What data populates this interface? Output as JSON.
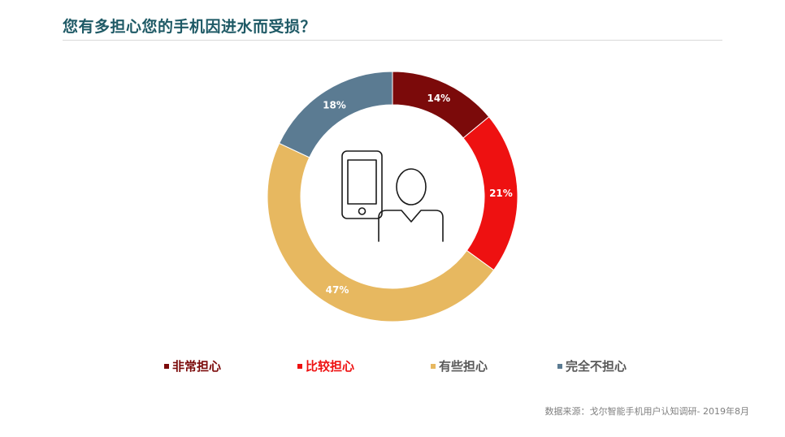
{
  "title": "您有多担心您的手机因进水而受损？",
  "source": "数据来源：戈尔智能手机用户认知调研- 2019年8月",
  "chart_data": {
    "type": "pie",
    "variant": "donut",
    "start": "12 o'clock, clockwise",
    "categories": [
      "非常担心",
      "比较担心",
      "有些担心",
      "完全不担心"
    ],
    "values": [
      14,
      21,
      47,
      18
    ],
    "data_labels": [
      "14%",
      "21%",
      "47%",
      "18%"
    ],
    "colors": [
      "#7b0a0a",
      "#ee1111",
      "#e7b860",
      "#5b7b92"
    ],
    "legend_text_colors": [
      "#7b0a0a",
      "#ee1111",
      "#595959",
      "#595959"
    ],
    "legend_placement": "bottom",
    "center_icon": "phone-and-person-icon"
  }
}
